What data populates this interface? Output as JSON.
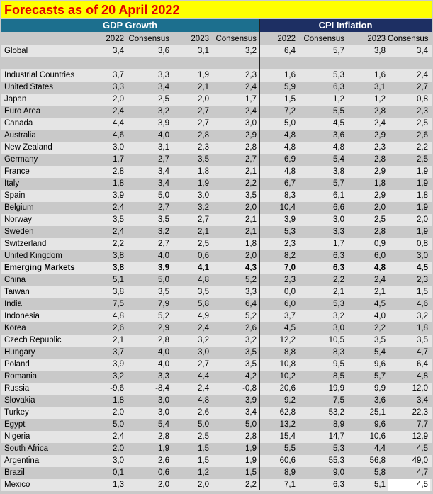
{
  "title": "Forecasts as of 20 April 2022",
  "groups": {
    "gdp": "GDP Growth",
    "cpi": "CPI Inflation"
  },
  "columns": [
    "",
    "2022",
    "Consensus",
    "2023",
    "Consensus",
    "2022",
    "Consensus",
    "2023",
    "Consensus"
  ],
  "rows": [
    {
      "name": "Global",
      "values": [
        "3,4",
        "3,6",
        "3,1",
        "3,2",
        "6,4",
        "5,7",
        "3,8",
        "3,4"
      ]
    },
    {
      "name": "",
      "values": [
        "",
        "",
        "",
        "",
        "",
        "",
        "",
        ""
      ]
    },
    {
      "name": "Industrial Countries",
      "values": [
        "3,7",
        "3,3",
        "1,9",
        "2,3",
        "1,6",
        "5,3",
        "1,6",
        "2,4"
      ]
    },
    {
      "name": "United States",
      "values": [
        "3,3",
        "3,4",
        "2,1",
        "2,4",
        "5,9",
        "6,3",
        "3,1",
        "2,7"
      ]
    },
    {
      "name": "Japan",
      "values": [
        "2,0",
        "2,5",
        "2,0",
        "1,7",
        "1,5",
        "1,2",
        "1,2",
        "0,8"
      ]
    },
    {
      "name": "Euro Area",
      "values": [
        "2,4",
        "3,2",
        "2,7",
        "2,4",
        "7,2",
        "5,5",
        "2,8",
        "2,3"
      ]
    },
    {
      "name": "Canada",
      "values": [
        "4,4",
        "3,9",
        "2,7",
        "3,0",
        "5,0",
        "4,5",
        "2,4",
        "2,5"
      ]
    },
    {
      "name": "Australia",
      "values": [
        "4,6",
        "4,0",
        "2,8",
        "2,9",
        "4,8",
        "3,6",
        "2,9",
        "2,6"
      ]
    },
    {
      "name": "New Zealand",
      "values": [
        "3,0",
        "3,1",
        "2,3",
        "2,8",
        "4,8",
        "4,8",
        "2,3",
        "2,2"
      ]
    },
    {
      "name": "Germany",
      "values": [
        "1,7",
        "2,7",
        "3,5",
        "2,7",
        "6,9",
        "5,4",
        "2,8",
        "2,5"
      ]
    },
    {
      "name": "France",
      "values": [
        "2,8",
        "3,4",
        "1,8",
        "2,1",
        "4,8",
        "3,8",
        "2,9",
        "1,9"
      ]
    },
    {
      "name": "Italy",
      "values": [
        "1,8",
        "3,4",
        "1,9",
        "2,2",
        "6,7",
        "5,7",
        "1,8",
        "1,9"
      ]
    },
    {
      "name": "Spain",
      "values": [
        "3,9",
        "5,0",
        "3,0",
        "3,5",
        "8,3",
        "6,1",
        "2,9",
        "1,8"
      ]
    },
    {
      "name": "Belgium",
      "values": [
        "2,4",
        "2,7",
        "3,2",
        "2,0",
        "10,4",
        "6,6",
        "2,0",
        "1,9"
      ]
    },
    {
      "name": "Norway",
      "values": [
        "3,5",
        "3,5",
        "2,7",
        "2,1",
        "3,9",
        "3,0",
        "2,5",
        "2,0"
      ]
    },
    {
      "name": "Sweden",
      "values": [
        "2,4",
        "3,2",
        "2,1",
        "2,1",
        "5,3",
        "3,3",
        "2,8",
        "1,9"
      ]
    },
    {
      "name": "Switzerland",
      "values": [
        "2,2",
        "2,7",
        "2,5",
        "1,8",
        "2,3",
        "1,7",
        "0,9",
        "0,8"
      ]
    },
    {
      "name": "United Kingdom",
      "values": [
        "3,8",
        "4,0",
        "0,6",
        "2,0",
        "8,2",
        "6,3",
        "6,0",
        "3,0"
      ]
    },
    {
      "name": "Emerging Markets",
      "bold": true,
      "values": [
        "3,8",
        "3,9",
        "4,1",
        "4,3",
        "7,0",
        "6,3",
        "4,8",
        "4,5"
      ]
    },
    {
      "name": "China",
      "values": [
        "5,1",
        "5,0",
        "4,8",
        "5,2",
        "2,3",
        "2,2",
        "2,4",
        "2,3"
      ]
    },
    {
      "name": "Taiwan",
      "values": [
        "3,8",
        "3,5",
        "3,5",
        "3,3",
        "0,0",
        "2,1",
        "2,1",
        "1,5"
      ]
    },
    {
      "name": "India",
      "values": [
        "7,5",
        "7,9",
        "5,8",
        "6,4",
        "6,0",
        "5,3",
        "4,5",
        "4,6"
      ]
    },
    {
      "name": "Indonesia",
      "values": [
        "4,8",
        "5,2",
        "4,9",
        "5,2",
        "3,7",
        "3,2",
        "4,0",
        "3,2"
      ]
    },
    {
      "name": "Korea",
      "values": [
        "2,6",
        "2,9",
        "2,4",
        "2,6",
        "4,5",
        "3,0",
        "2,2",
        "1,8"
      ]
    },
    {
      "name": "Czech Republic",
      "values": [
        "2,1",
        "2,8",
        "3,2",
        "3,2",
        "12,2",
        "10,5",
        "3,5",
        "3,5"
      ]
    },
    {
      "name": "Hungary",
      "values": [
        "3,7",
        "4,0",
        "3,0",
        "3,5",
        "8,8",
        "8,3",
        "5,4",
        "4,7"
      ]
    },
    {
      "name": "Poland",
      "values": [
        "3,9",
        "4,0",
        "2,7",
        "3,5",
        "10,8",
        "9,5",
        "9,6",
        "6,4"
      ]
    },
    {
      "name": "Romania",
      "values": [
        "3,2",
        "3,3",
        "4,4",
        "4,2",
        "10,2",
        "8,5",
        "5,7",
        "4,8"
      ]
    },
    {
      "name": "Russia",
      "values": [
        "-9,6",
        "-8,4",
        "2,4",
        "-0,8",
        "20,6",
        "19,9",
        "9,9",
        "12,0"
      ]
    },
    {
      "name": "Slovakia",
      "values": [
        "1,8",
        "3,0",
        "4,8",
        "3,9",
        "9,2",
        "7,5",
        "3,6",
        "3,4"
      ]
    },
    {
      "name": "Turkey",
      "values": [
        "2,0",
        "3,0",
        "2,6",
        "3,4",
        "62,8",
        "53,2",
        "25,1",
        "22,3"
      ]
    },
    {
      "name": "Egypt",
      "values": [
        "5,0",
        "5,4",
        "5,0",
        "5,0",
        "13,2",
        "8,9",
        "9,6",
        "7,7"
      ]
    },
    {
      "name": "Nigeria",
      "values": [
        "2,4",
        "2,8",
        "2,5",
        "2,8",
        "15,4",
        "14,7",
        "10,6",
        "12,9"
      ]
    },
    {
      "name": "South Africa",
      "values": [
        "2,0",
        "1,9",
        "1,5",
        "1,9",
        "5,5",
        "5,3",
        "4,4",
        "4,5"
      ]
    },
    {
      "name": "Argentina",
      "values": [
        "3,0",
        "2,6",
        "1,5",
        "1,9",
        "60,6",
        "55,3",
        "56,8",
        "49,0"
      ]
    },
    {
      "name": "Brazil",
      "values": [
        "0,1",
        "0,6",
        "1,2",
        "1,5",
        "8,9",
        "9,0",
        "5,8",
        "4,7"
      ]
    },
    {
      "name": "Mexico",
      "values": [
        "1,3",
        "2,0",
        "2,0",
        "2,2",
        "7,1",
        "6,3",
        "5,1",
        "4,5"
      ]
    }
  ],
  "colors": {
    "title_bg": "#ffff00",
    "title_fg": "#e00000",
    "gdp_header": "#1c6f8e",
    "cpi_header": "#1d2f63"
  }
}
